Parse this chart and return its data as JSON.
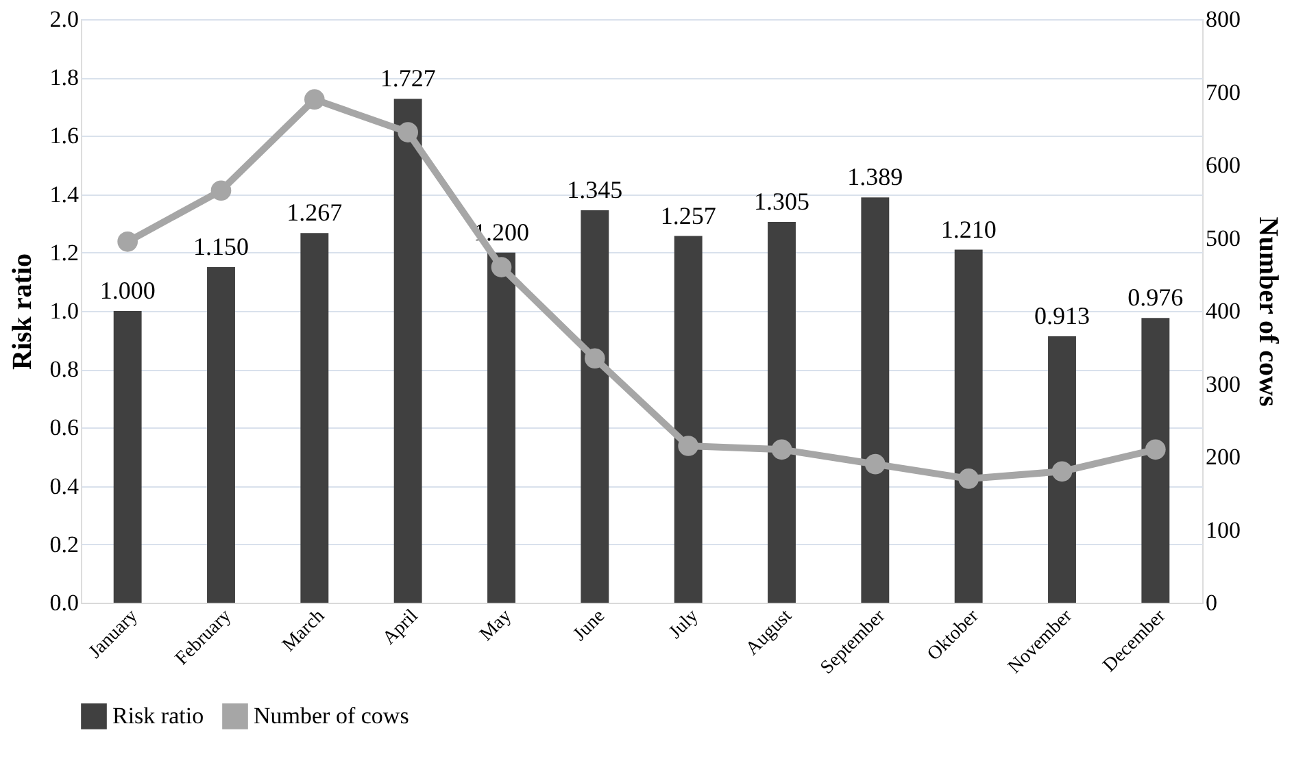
{
  "chart_data": {
    "type": "bar",
    "categories": [
      "January",
      "February",
      "March",
      "April",
      "May",
      "June",
      "July",
      "August",
      "September",
      "Oktober",
      "November",
      "December"
    ],
    "ylabel": "Risk ratio",
    "y2label": "Number of cows",
    "series": [
      {
        "name": "Risk ratio",
        "color": "#404040",
        "values": [
          1.0,
          1.15,
          1.267,
          1.727,
          1.2,
          1.345,
          1.257,
          1.305,
          1.389,
          1.21,
          0.913,
          0.976
        ],
        "value_labels": [
          "1.000",
          "1.150",
          "1.267",
          "1.727",
          "1.200",
          "1.345",
          "1.257",
          "1.305",
          "1.389",
          "1.210",
          "0.913",
          "0.976"
        ]
      },
      {
        "name": "Number of cows",
        "type": "line",
        "axis": "y2",
        "color": "#a6a6a6",
        "marker": "circle",
        "values": [
          495,
          565,
          690,
          645,
          460,
          335,
          215,
          210,
          190,
          170,
          180,
          210
        ]
      }
    ],
    "ylim": [
      0,
      2.0
    ],
    "yticks": [
      {
        "value": 0,
        "label": "0.0"
      },
      {
        "value": 0.2,
        "label": "0.2"
      },
      {
        "value": 0.4,
        "label": "0.4"
      },
      {
        "value": 0.6,
        "label": "0.6"
      },
      {
        "value": 0.8,
        "label": "0.8"
      },
      {
        "value": 1.0,
        "label": "1.0"
      },
      {
        "value": 1.2,
        "label": "1.2"
      },
      {
        "value": 1.4,
        "label": "1.4"
      },
      {
        "value": 1.6,
        "label": "1.6"
      },
      {
        "value": 1.8,
        "label": "1.8"
      },
      {
        "value": 2.0,
        "label": "2.0"
      }
    ],
    "y2lim": [
      0,
      800
    ],
    "y2ticks": [
      0,
      100,
      200,
      300,
      400,
      500,
      600,
      700,
      800
    ],
    "grid": "y",
    "legend": "bottom"
  }
}
